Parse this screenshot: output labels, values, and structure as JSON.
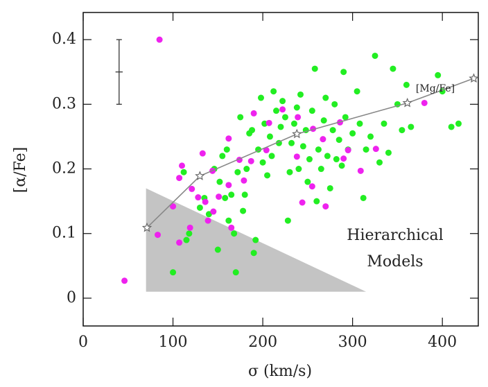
{
  "chart_data": {
    "type": "scatter",
    "xlabel": "σ (km/s)",
    "ylabel": "[α/Fe]",
    "xlim": [
      0,
      440
    ],
    "ylim": [
      -0.043,
      0.442
    ],
    "xticks": [
      0,
      100,
      200,
      300,
      400
    ],
    "yticks": [
      0,
      0.1,
      0.2,
      0.3,
      0.4
    ],
    "series": [
      {
        "color": "#22ee22",
        "x": [
          100,
          112,
          115,
          118,
          130,
          135,
          140,
          146,
          150,
          152,
          155,
          158,
          160,
          162,
          165,
          168,
          170,
          172,
          175,
          178,
          180,
          182,
          185,
          188,
          190,
          192,
          195,
          198,
          200,
          202,
          205,
          208,
          210,
          212,
          215,
          218,
          220,
          222,
          225,
          228,
          230,
          232,
          235,
          238,
          240,
          242,
          245,
          248,
          250,
          252,
          255,
          258,
          260,
          262,
          265,
          268,
          270,
          272,
          275,
          278,
          280,
          282,
          285,
          288,
          290,
          292,
          295,
          300,
          305,
          308,
          312,
          315,
          320,
          325,
          330,
          335,
          340,
          345,
          350,
          355,
          360,
          365,
          395,
          400,
          410,
          418
        ],
        "values": [
          0.04,
          0.195,
          0.09,
          0.1,
          0.14,
          0.155,
          0.13,
          0.2,
          0.075,
          0.18,
          0.22,
          0.155,
          0.23,
          0.12,
          0.16,
          0.1,
          0.04,
          0.195,
          0.28,
          0.135,
          0.16,
          0.2,
          0.255,
          0.26,
          0.07,
          0.09,
          0.23,
          0.31,
          0.21,
          0.27,
          0.19,
          0.25,
          0.22,
          0.32,
          0.29,
          0.24,
          0.265,
          0.305,
          0.28,
          0.12,
          0.195,
          0.24,
          0.27,
          0.295,
          0.2,
          0.315,
          0.235,
          0.26,
          0.18,
          0.215,
          0.29,
          0.355,
          0.15,
          0.23,
          0.2,
          0.275,
          0.31,
          0.22,
          0.17,
          0.26,
          0.3,
          0.215,
          0.245,
          0.205,
          0.35,
          0.28,
          0.23,
          0.255,
          0.32,
          0.27,
          0.155,
          0.23,
          0.25,
          0.375,
          0.21,
          0.27,
          0.225,
          0.355,
          0.3,
          0.26,
          0.33,
          0.265,
          0.345,
          0.32,
          0.265,
          0.27
        ]
      },
      {
        "color": "#ee22ee",
        "x": [
          85,
          46,
          83,
          100,
          107,
          110,
          121,
          133,
          128,
          136,
          119,
          139,
          145,
          144,
          162,
          165,
          162,
          174,
          179,
          187,
          190,
          207,
          204,
          222,
          238,
          239,
          255,
          256,
          244,
          270,
          267,
          286,
          290,
          295,
          309,
          326,
          380,
          151,
          107
        ],
        "values": [
          0.4,
          0.027,
          0.098,
          0.142,
          0.186,
          0.205,
          0.169,
          0.224,
          0.156,
          0.149,
          0.109,
          0.12,
          0.134,
          0.197,
          0.175,
          0.109,
          0.247,
          0.214,
          0.182,
          0.212,
          0.286,
          0.271,
          0.229,
          0.292,
          0.219,
          0.28,
          0.173,
          0.262,
          0.148,
          0.142,
          0.246,
          0.272,
          0.216,
          0.229,
          0.197,
          0.231,
          0.302,
          0.157,
          0.086
        ]
      }
    ],
    "line": {
      "name": "[Mg/Fe]",
      "color": "#888888",
      "x": [
        71,
        130,
        238,
        361,
        435
      ],
      "values": [
        0.109,
        0.189,
        0.254,
        0.302,
        0.34
      ]
    },
    "region": {
      "label": [
        "Hierarchical",
        "Models"
      ],
      "color": "#c4c4c4",
      "x": [
        70,
        70,
        315
      ],
      "values": [
        0.17,
        0.01,
        0.01
      ]
    },
    "error_bar": {
      "x": 40,
      "y": 0.35,
      "xerr": 4,
      "yerr": 0.05
    }
  }
}
